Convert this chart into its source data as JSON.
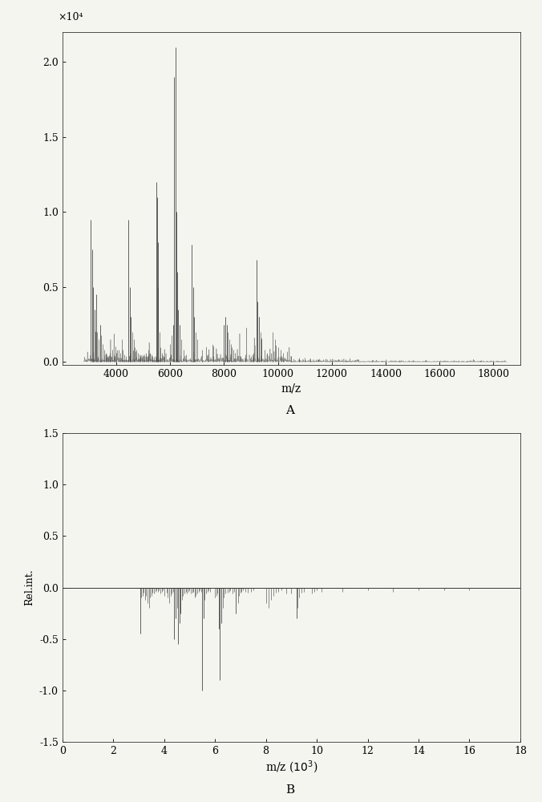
{
  "plot_A": {
    "xlim": [
      2000,
      19000
    ],
    "ylim": [
      -200,
      22000
    ],
    "yticks": [
      0,
      5000,
      10000,
      15000,
      20000
    ],
    "ytick_labels": [
      "0.0",
      "0.5",
      "1.0",
      "1.5",
      "2.0"
    ],
    "xticks": [
      4000,
      6000,
      8000,
      10000,
      12000,
      14000,
      16000,
      18000
    ],
    "xlabel": "m/z",
    "ylabel_sci": "×10⁴",
    "label": "A",
    "peaks": [
      [
        3050,
        9500
      ],
      [
        3100,
        7500
      ],
      [
        3150,
        5000
      ],
      [
        3200,
        3500
      ],
      [
        3250,
        4500
      ],
      [
        3300,
        2000
      ],
      [
        3350,
        1500
      ],
      [
        3400,
        2500
      ],
      [
        3450,
        1800
      ],
      [
        3500,
        1200
      ],
      [
        3550,
        800
      ],
      [
        3600,
        600
      ],
      [
        3650,
        500
      ],
      [
        3700,
        400
      ],
      [
        3750,
        600
      ],
      [
        3800,
        400
      ],
      [
        3850,
        800
      ],
      [
        3900,
        500
      ],
      [
        3950,
        400
      ],
      [
        4000,
        600
      ],
      [
        4100,
        800
      ],
      [
        4150,
        600
      ],
      [
        4200,
        1500
      ],
      [
        4250,
        800
      ],
      [
        4300,
        500
      ],
      [
        4350,
        400
      ],
      [
        4450,
        9500
      ],
      [
        4500,
        5000
      ],
      [
        4550,
        3000
      ],
      [
        4600,
        2000
      ],
      [
        4650,
        1500
      ],
      [
        4700,
        1000
      ],
      [
        4750,
        800
      ],
      [
        4800,
        600
      ],
      [
        4850,
        500
      ],
      [
        4900,
        400
      ],
      [
        4950,
        350
      ],
      [
        5000,
        400
      ],
      [
        5050,
        500
      ],
      [
        5100,
        600
      ],
      [
        5150,
        400
      ],
      [
        5200,
        800
      ],
      [
        5250,
        600
      ],
      [
        5300,
        500
      ],
      [
        5350,
        400
      ],
      [
        5400,
        350
      ],
      [
        5450,
        400
      ],
      [
        5500,
        12000
      ],
      [
        5520,
        11000
      ],
      [
        5540,
        8000
      ],
      [
        5560,
        5000
      ],
      [
        5600,
        2000
      ],
      [
        5650,
        1000
      ],
      [
        5700,
        600
      ],
      [
        5750,
        400
      ],
      [
        5800,
        350
      ],
      [
        6000,
        1200
      ],
      [
        6050,
        1800
      ],
      [
        6100,
        2500
      ],
      [
        6150,
        19000
      ],
      [
        6200,
        21000
      ],
      [
        6230,
        10000
      ],
      [
        6260,
        6000
      ],
      [
        6300,
        3500
      ],
      [
        6350,
        2500
      ],
      [
        6400,
        1500
      ],
      [
        6500,
        800
      ],
      [
        6600,
        500
      ],
      [
        6800,
        7800
      ],
      [
        6850,
        5000
      ],
      [
        6900,
        3000
      ],
      [
        6950,
        2000
      ],
      [
        7000,
        1500
      ],
      [
        7200,
        800
      ],
      [
        7400,
        500
      ],
      [
        7600,
        400
      ],
      [
        7800,
        300
      ],
      [
        8000,
        2500
      ],
      [
        8050,
        3000
      ],
      [
        8100,
        2500
      ],
      [
        8150,
        2000
      ],
      [
        8200,
        1500
      ],
      [
        8250,
        1200
      ],
      [
        8300,
        1000
      ],
      [
        8350,
        800
      ],
      [
        8400,
        600
      ],
      [
        8600,
        400
      ],
      [
        8800,
        500
      ],
      [
        9000,
        400
      ],
      [
        9050,
        500
      ],
      [
        9100,
        600
      ],
      [
        9200,
        6800
      ],
      [
        9250,
        4000
      ],
      [
        9300,
        3000
      ],
      [
        9350,
        2000
      ],
      [
        9400,
        1500
      ],
      [
        9500,
        800
      ],
      [
        9600,
        600
      ],
      [
        9800,
        2000
      ],
      [
        9900,
        1500
      ],
      [
        10000,
        1000
      ],
      [
        10100,
        800
      ],
      [
        10200,
        600
      ],
      [
        10500,
        400
      ],
      [
        10800,
        300
      ],
      [
        11000,
        300
      ],
      [
        11200,
        250
      ],
      [
        11500,
        200
      ],
      [
        12000,
        250
      ],
      [
        12500,
        200
      ],
      [
        13000,
        150
      ],
      [
        13500,
        120
      ],
      [
        14000,
        180
      ],
      [
        14500,
        100
      ],
      [
        15000,
        120
      ],
      [
        15500,
        100
      ],
      [
        16000,
        80
      ],
      [
        16500,
        70
      ],
      [
        17000,
        60
      ],
      [
        17500,
        50
      ],
      [
        18000,
        40
      ],
      [
        18500,
        30
      ]
    ]
  },
  "plot_B": {
    "xlim": [
      0,
      18000
    ],
    "ylim": [
      -1.5,
      1.5
    ],
    "yticks": [
      -1.5,
      -1.0,
      -0.5,
      0.0,
      0.5,
      1.0,
      1.5
    ],
    "xticks": [
      0,
      2000,
      4000,
      6000,
      8000,
      10000,
      12000,
      14000,
      16000,
      18000
    ],
    "xtick_labels": [
      "0",
      "2",
      "4",
      "6",
      "8",
      "10",
      "12",
      "14",
      "16",
      "18"
    ],
    "xlabel": "m/z（10³）",
    "ylabel": "Rel.int.",
    "label": "B",
    "peaks": [
      [
        3050,
        -0.45
      ],
      [
        3100,
        -0.1
      ],
      [
        3150,
        -0.08
      ],
      [
        3200,
        -0.05
      ],
      [
        3250,
        -0.12
      ],
      [
        3300,
        -0.08
      ],
      [
        3350,
        -0.15
      ],
      [
        3400,
        -0.2
      ],
      [
        3450,
        -0.1
      ],
      [
        3500,
        -0.08
      ],
      [
        3550,
        -0.05
      ],
      [
        3600,
        -0.06
      ],
      [
        3650,
        -0.04
      ],
      [
        3700,
        -0.03
      ],
      [
        3750,
        -0.04
      ],
      [
        3800,
        -0.03
      ],
      [
        3850,
        -0.06
      ],
      [
        3900,
        -0.04
      ],
      [
        3950,
        -0.03
      ],
      [
        4000,
        -0.08
      ],
      [
        4100,
        -0.05
      ],
      [
        4150,
        -0.1
      ],
      [
        4200,
        -0.15
      ],
      [
        4250,
        -0.08
      ],
      [
        4300,
        -0.06
      ],
      [
        4350,
        -0.04
      ],
      [
        4400,
        -0.5
      ],
      [
        4450,
        -0.3
      ],
      [
        4500,
        -0.2
      ],
      [
        4550,
        -0.55
      ],
      [
        4600,
        -0.35
      ],
      [
        4650,
        -0.25
      ],
      [
        4700,
        -0.12
      ],
      [
        4750,
        -0.08
      ],
      [
        4800,
        -0.06
      ],
      [
        4850,
        -0.04
      ],
      [
        4900,
        -0.06
      ],
      [
        4950,
        -0.04
      ],
      [
        5000,
        -0.03
      ],
      [
        5050,
        -0.06
      ],
      [
        5100,
        -0.05
      ],
      [
        5150,
        -0.04
      ],
      [
        5200,
        -0.1
      ],
      [
        5250,
        -0.08
      ],
      [
        5300,
        -0.06
      ],
      [
        5350,
        -0.04
      ],
      [
        5400,
        -0.03
      ],
      [
        5450,
        -0.04
      ],
      [
        5500,
        -1.0
      ],
      [
        5550,
        -0.3
      ],
      [
        5600,
        -0.12
      ],
      [
        5650,
        -0.06
      ],
      [
        5700,
        -0.04
      ],
      [
        5750,
        -0.03
      ],
      [
        5800,
        -0.04
      ],
      [
        6000,
        -0.1
      ],
      [
        6050,
        -0.08
      ],
      [
        6100,
        -0.06
      ],
      [
        6150,
        -0.4
      ],
      [
        6200,
        -0.9
      ],
      [
        6250,
        -0.35
      ],
      [
        6300,
        -0.2
      ],
      [
        6350,
        -0.1
      ],
      [
        6400,
        -0.06
      ],
      [
        6500,
        -0.05
      ],
      [
        6550,
        -0.04
      ],
      [
        6600,
        -0.03
      ],
      [
        6700,
        -0.06
      ],
      [
        6750,
        -0.04
      ],
      [
        6800,
        -0.25
      ],
      [
        6900,
        -0.15
      ],
      [
        6950,
        -0.08
      ],
      [
        7000,
        -0.05
      ],
      [
        7050,
        -0.04
      ],
      [
        7100,
        -0.03
      ],
      [
        7200,
        -0.04
      ],
      [
        7300,
        -0.05
      ],
      [
        7400,
        -0.04
      ],
      [
        7500,
        -0.03
      ],
      [
        8000,
        -0.15
      ],
      [
        8100,
        -0.2
      ],
      [
        8200,
        -0.12
      ],
      [
        8300,
        -0.08
      ],
      [
        8400,
        -0.05
      ],
      [
        8500,
        -0.04
      ],
      [
        8600,
        -0.03
      ],
      [
        8800,
        -0.06
      ],
      [
        9000,
        -0.06
      ],
      [
        9200,
        -0.3
      ],
      [
        9250,
        -0.2
      ],
      [
        9300,
        -0.1
      ],
      [
        9400,
        -0.05
      ],
      [
        9500,
        -0.04
      ],
      [
        9800,
        -0.06
      ],
      [
        9900,
        -0.04
      ],
      [
        10000,
        -0.03
      ],
      [
        10200,
        -0.04
      ],
      [
        11000,
        -0.04
      ],
      [
        12000,
        -0.03
      ],
      [
        13000,
        -0.04
      ],
      [
        14000,
        -0.03
      ],
      [
        15000,
        -0.03
      ],
      [
        16000,
        -0.03
      ]
    ]
  },
  "line_color": "#444444",
  "background_color": "#f5f5f0",
  "spine_color": "#333333"
}
